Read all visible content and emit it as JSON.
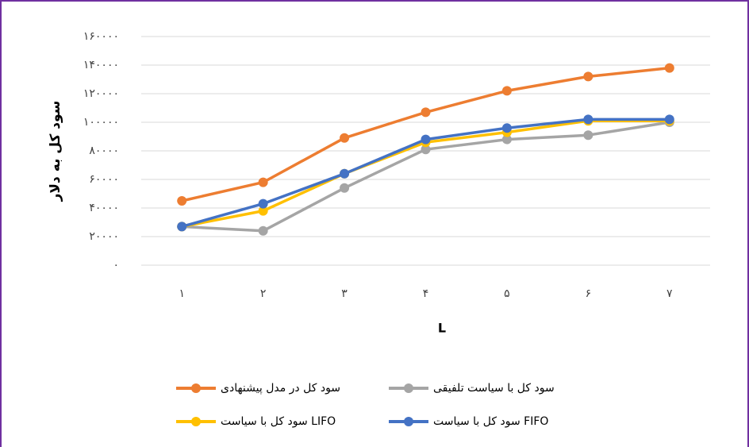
{
  "chart_data": {
    "type": "line",
    "y_label": "سود کل به دلار",
    "x_label": "L",
    "categories": [
      "۱",
      "۲",
      "۳",
      "۴",
      "۵",
      "۶",
      "۷"
    ],
    "series": [
      {
        "name": "سود کل در مدل پیشنهادی",
        "color": "#ed7d31",
        "values": [
          45000,
          58000,
          89000,
          107000,
          122000,
          132000,
          138000
        ]
      },
      {
        "name": "سود کل با سیاست تلفیقی",
        "color": "#a5a5a5",
        "values": [
          27000,
          24000,
          54000,
          81000,
          88000,
          91000,
          100000
        ]
      },
      {
        "name": "سود کل با سیاست LIFO",
        "color": "#ffc000",
        "values": [
          27000,
          38000,
          64000,
          86000,
          93000,
          101000,
          101000
        ]
      },
      {
        "name": "سود کل با سیاست FIFO",
        "color": "#4472c4",
        "values": [
          27000,
          43000,
          64000,
          88000,
          96000,
          102000,
          102000
        ]
      }
    ],
    "ylim": [
      0,
      160000
    ],
    "yticks": [
      {
        "value": 0,
        "label": "۰"
      },
      {
        "value": 20000,
        "label": "۲۰۰۰۰"
      },
      {
        "value": 40000,
        "label": "۴۰۰۰۰"
      },
      {
        "value": 60000,
        "label": "۶۰۰۰۰"
      },
      {
        "value": 80000,
        "label": "۸۰۰۰۰"
      },
      {
        "value": 100000,
        "label": "۱۰۰۰۰۰"
      },
      {
        "value": 120000,
        "label": "۱۲۰۰۰۰"
      },
      {
        "value": 140000,
        "label": "۱۴۰۰۰۰"
      },
      {
        "value": 160000,
        "label": "۱۶۰۰۰۰"
      }
    ],
    "grid": true
  }
}
